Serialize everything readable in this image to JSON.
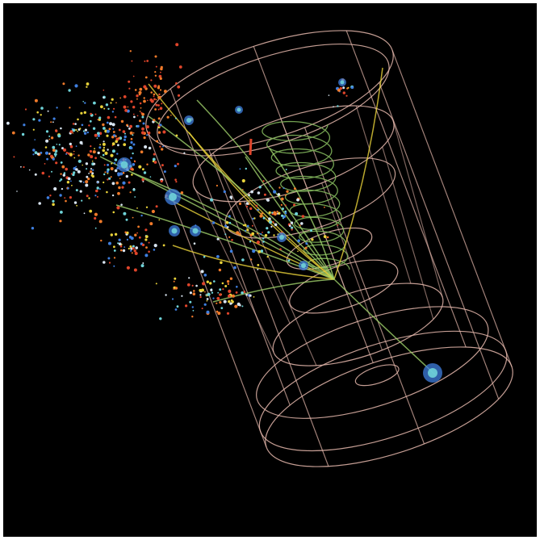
{
  "image": {
    "subject": "particle-collision-event-display",
    "background_color": "#000000",
    "border_color": "#ffffff",
    "colors": {
      "detector_outline": "#e6b8ad",
      "spiral_track": "#7fb35a",
      "track_green": "#9fcf6a",
      "hit_red": "#e0452b",
      "hit_orange": "#f07a2a",
      "hit_yellow": "#e8d23a",
      "hit_cyan": "#6fd3d8",
      "hit_blue": "#3f7fe0",
      "hit_white": "#d8e4f0"
    }
  }
}
